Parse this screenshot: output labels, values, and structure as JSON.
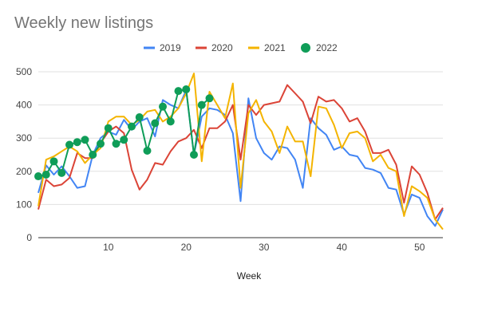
{
  "chart_data": {
    "type": "line",
    "title": "Weekly new listings",
    "xlabel": "Week",
    "ylabel": "",
    "xlim": [
      1,
      53
    ],
    "ylim": [
      0,
      500
    ],
    "x_ticks": [
      10,
      20,
      30,
      40,
      50
    ],
    "y_ticks": [
      0,
      100,
      200,
      300,
      400,
      500
    ],
    "grid": true,
    "legend_position": "top",
    "series": [
      {
        "name": "2019",
        "color": "#4285f4",
        "style": "line",
        "x": [
          1,
          2,
          3,
          4,
          5,
          6,
          7,
          8,
          9,
          10,
          11,
          12,
          13,
          14,
          15,
          16,
          17,
          18,
          19,
          20,
          21,
          22,
          23,
          24,
          25,
          26,
          27,
          28,
          29,
          30,
          31,
          32,
          33,
          34,
          35,
          36,
          37,
          38,
          39,
          40,
          41,
          42,
          43,
          44,
          45,
          46,
          47,
          48,
          49,
          50,
          51,
          52,
          53
        ],
        "values": [
          135,
          218,
          190,
          215,
          185,
          150,
          155,
          250,
          300,
          320,
          310,
          355,
          325,
          350,
          360,
          305,
          415,
          400,
          390,
          445,
          250,
          365,
          390,
          385,
          370,
          315,
          110,
          420,
          300,
          255,
          235,
          275,
          270,
          235,
          150,
          360,
          330,
          310,
          265,
          275,
          250,
          245,
          210,
          205,
          195,
          150,
          145,
          70,
          130,
          120,
          65,
          35,
          85
        ]
      },
      {
        "name": "2020",
        "color": "#db4437",
        "style": "line",
        "x": [
          1,
          2,
          3,
          4,
          5,
          6,
          7,
          8,
          9,
          10,
          11,
          12,
          13,
          14,
          15,
          16,
          17,
          18,
          19,
          20,
          21,
          22,
          23,
          24,
          25,
          26,
          27,
          28,
          29,
          30,
          31,
          32,
          33,
          34,
          35,
          36,
          37,
          38,
          39,
          40,
          41,
          42,
          43,
          44,
          45,
          46,
          47,
          48,
          49,
          50,
          51,
          52,
          53
        ],
        "values": [
          85,
          175,
          155,
          160,
          180,
          255,
          240,
          240,
          285,
          320,
          335,
          315,
          205,
          145,
          175,
          225,
          220,
          260,
          290,
          300,
          325,
          270,
          330,
          330,
          350,
          400,
          235,
          400,
          370,
          400,
          405,
          410,
          460,
          435,
          410,
          345,
          425,
          410,
          415,
          390,
          350,
          360,
          320,
          255,
          255,
          265,
          220,
          105,
          215,
          190,
          135,
          55,
          90
        ]
      },
      {
        "name": "2021",
        "color": "#f4b400",
        "style": "line",
        "x": [
          1,
          2,
          3,
          4,
          5,
          6,
          7,
          8,
          9,
          10,
          11,
          12,
          13,
          14,
          15,
          16,
          17,
          18,
          19,
          20,
          21,
          22,
          23,
          24,
          25,
          26,
          27,
          28,
          29,
          30,
          31,
          32,
          33,
          34,
          35,
          36,
          37,
          38,
          39,
          40,
          41,
          42,
          43,
          44,
          45,
          46,
          47,
          48,
          49,
          50,
          51,
          52,
          53
        ],
        "values": [
          95,
          235,
          245,
          260,
          275,
          260,
          225,
          250,
          270,
          350,
          365,
          365,
          340,
          355,
          380,
          385,
          350,
          365,
          390,
          435,
          495,
          230,
          440,
          400,
          360,
          465,
          150,
          375,
          415,
          350,
          320,
          255,
          335,
          290,
          290,
          185,
          395,
          390,
          340,
          270,
          315,
          320,
          300,
          230,
          250,
          210,
          200,
          65,
          155,
          140,
          120,
          55,
          25
        ]
      },
      {
        "name": "2022",
        "color": "#0f9d58",
        "style": "line-markers",
        "x": [
          1,
          2,
          3,
          4,
          5,
          6,
          7,
          8,
          9,
          10,
          11,
          12,
          13,
          14,
          15,
          16,
          17,
          18,
          19,
          20,
          21,
          22,
          23
        ],
        "values": [
          185,
          190,
          230,
          195,
          280,
          288,
          295,
          250,
          283,
          330,
          283,
          295,
          335,
          363,
          262,
          345,
          395,
          350,
          442,
          447,
          250,
          400,
          420
        ]
      }
    ]
  }
}
